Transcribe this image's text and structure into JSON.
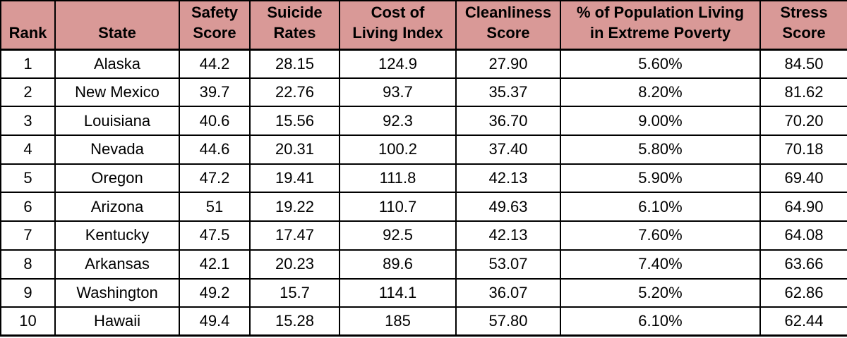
{
  "colors": {
    "header_bg": "#d99997",
    "border": "#000000",
    "cell_bg": "#ffffff",
    "text": "#000000"
  },
  "table": {
    "columns": [
      "Rank",
      "State",
      "Safety\nScore",
      "Suicide\nRates",
      "Cost of\nLiving Index",
      "Cleanliness\nScore",
      "% of Population Living\nin Extreme Poverty",
      "Stress\nScore"
    ],
    "rows": [
      [
        "1",
        "Alaska",
        "44.2",
        "28.15",
        "124.9",
        "27.90",
        "5.60%",
        "84.50"
      ],
      [
        "2",
        "New Mexico",
        "39.7",
        "22.76",
        "93.7",
        "35.37",
        "8.20%",
        "81.62"
      ],
      [
        "3",
        "Louisiana",
        "40.6",
        "15.56",
        "92.3",
        "36.70",
        "9.00%",
        "70.20"
      ],
      [
        "4",
        "Nevada",
        "44.6",
        "20.31",
        "100.2",
        "37.40",
        "5.80%",
        "70.18"
      ],
      [
        "5",
        "Oregon",
        "47.2",
        "19.41",
        "111.8",
        "42.13",
        "5.90%",
        "69.40"
      ],
      [
        "6",
        "Arizona",
        "51",
        "19.22",
        "110.7",
        "49.63",
        "6.10%",
        "64.90"
      ],
      [
        "7",
        "Kentucky",
        "47.5",
        "17.47",
        "92.5",
        "42.13",
        "7.60%",
        "64.08"
      ],
      [
        "8",
        "Arkansas",
        "42.1",
        "20.23",
        "89.6",
        "53.07",
        "7.40%",
        "63.66"
      ],
      [
        "9",
        "Washington",
        "49.2",
        "15.7",
        "114.1",
        "36.07",
        "5.20%",
        "62.86"
      ],
      [
        "10",
        "Hawaii",
        "49.4",
        "15.28",
        "185",
        "57.80",
        "6.10%",
        "62.44"
      ]
    ]
  },
  "chart_data": {
    "type": "table",
    "title": "",
    "columns": [
      "Rank",
      "State",
      "Safety Score",
      "Suicide Rates",
      "Cost of Living Index",
      "Cleanliness Score",
      "% of Population Living in Extreme Poverty",
      "Stress Score"
    ],
    "rows": [
      {
        "rank": 1,
        "state": "Alaska",
        "safety_score": 44.2,
        "suicide_rates": 28.15,
        "cost_of_living_index": 124.9,
        "cleanliness_score": 27.9,
        "pct_population_extreme_poverty": "5.60%",
        "stress_score": 84.5
      },
      {
        "rank": 2,
        "state": "New Mexico",
        "safety_score": 39.7,
        "suicide_rates": 22.76,
        "cost_of_living_index": 93.7,
        "cleanliness_score": 35.37,
        "pct_population_extreme_poverty": "8.20%",
        "stress_score": 81.62
      },
      {
        "rank": 3,
        "state": "Louisiana",
        "safety_score": 40.6,
        "suicide_rates": 15.56,
        "cost_of_living_index": 92.3,
        "cleanliness_score": 36.7,
        "pct_population_extreme_poverty": "9.00%",
        "stress_score": 70.2
      },
      {
        "rank": 4,
        "state": "Nevada",
        "safety_score": 44.6,
        "suicide_rates": 20.31,
        "cost_of_living_index": 100.2,
        "cleanliness_score": 37.4,
        "pct_population_extreme_poverty": "5.80%",
        "stress_score": 70.18
      },
      {
        "rank": 5,
        "state": "Oregon",
        "safety_score": 47.2,
        "suicide_rates": 19.41,
        "cost_of_living_index": 111.8,
        "cleanliness_score": 42.13,
        "pct_population_extreme_poverty": "5.90%",
        "stress_score": 69.4
      },
      {
        "rank": 6,
        "state": "Arizona",
        "safety_score": 51,
        "suicide_rates": 19.22,
        "cost_of_living_index": 110.7,
        "cleanliness_score": 49.63,
        "pct_population_extreme_poverty": "6.10%",
        "stress_score": 64.9
      },
      {
        "rank": 7,
        "state": "Kentucky",
        "safety_score": 47.5,
        "suicide_rates": 17.47,
        "cost_of_living_index": 92.5,
        "cleanliness_score": 42.13,
        "pct_population_extreme_poverty": "7.60%",
        "stress_score": 64.08
      },
      {
        "rank": 8,
        "state": "Arkansas",
        "safety_score": 42.1,
        "suicide_rates": 20.23,
        "cost_of_living_index": 89.6,
        "cleanliness_score": 53.07,
        "pct_population_extreme_poverty": "7.40%",
        "stress_score": 63.66
      },
      {
        "rank": 9,
        "state": "Washington",
        "safety_score": 49.2,
        "suicide_rates": 15.7,
        "cost_of_living_index": 114.1,
        "cleanliness_score": 36.07,
        "pct_population_extreme_poverty": "5.20%",
        "stress_score": 62.86
      },
      {
        "rank": 10,
        "state": "Hawaii",
        "safety_score": 49.4,
        "suicide_rates": 15.28,
        "cost_of_living_index": 185,
        "cleanliness_score": 57.8,
        "pct_population_extreme_poverty": "6.10%",
        "stress_score": 62.44
      }
    ]
  }
}
